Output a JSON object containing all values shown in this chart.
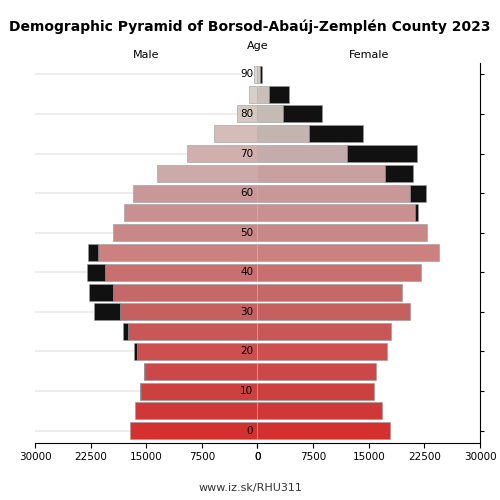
{
  "title": "Demographic Pyramid of Borsod-Abaúj-Zemplén County 2023",
  "footer": "www.iz.sk/RHU311",
  "label_male": "Male",
  "label_female": "Female",
  "label_age": "Age",
  "age_groups": [
    {
      "age": 90,
      "m_main": 450,
      "m_black": 0,
      "f_main": 280,
      "f_black": 330
    },
    {
      "age": 85,
      "m_main": 1200,
      "m_black": 0,
      "f_main": 1500,
      "f_black": 2700
    },
    {
      "age": 80,
      "m_main": 2700,
      "m_black": 0,
      "f_main": 3500,
      "f_black": 5200
    },
    {
      "age": 75,
      "m_main": 5800,
      "m_black": 0,
      "f_main": 7000,
      "f_black": 7200
    },
    {
      "age": 70,
      "m_main": 9500,
      "m_black": 0,
      "f_main": 12000,
      "f_black": 9500
    },
    {
      "age": 65,
      "m_main": 13500,
      "m_black": 0,
      "f_main": 17200,
      "f_black": 3800
    },
    {
      "age": 60,
      "m_main": 16800,
      "m_black": 0,
      "f_main": 20500,
      "f_black": 2200
    },
    {
      "age": 55,
      "m_main": 18000,
      "m_black": 0,
      "f_main": 21200,
      "f_black": 500
    },
    {
      "age": 50,
      "m_main": 19500,
      "m_black": 0,
      "f_main": 22800,
      "f_black": 0
    },
    {
      "age": 45,
      "m_main": 21500,
      "m_black": 1400,
      "f_main": 24500,
      "f_black": 0
    },
    {
      "age": 40,
      "m_main": 20500,
      "m_black": 2500,
      "f_main": 22000,
      "f_black": 0
    },
    {
      "age": 35,
      "m_main": 19500,
      "m_black": 3200,
      "f_main": 19500,
      "f_black": 0
    },
    {
      "age": 30,
      "m_main": 18500,
      "m_black": 3600,
      "f_main": 20500,
      "f_black": 0
    },
    {
      "age": 25,
      "m_main": 17500,
      "m_black": 700,
      "f_main": 18000,
      "f_black": 0
    },
    {
      "age": 20,
      "m_main": 16300,
      "m_black": 300,
      "f_main": 17500,
      "f_black": 0
    },
    {
      "age": 15,
      "m_main": 15200,
      "m_black": 150,
      "f_main": 16000,
      "f_black": 0
    },
    {
      "age": 10,
      "m_main": 15700,
      "m_black": 150,
      "f_main": 15700,
      "f_black": 0
    },
    {
      "age": 5,
      "m_main": 16500,
      "m_black": 0,
      "f_main": 16800,
      "f_black": 0
    },
    {
      "age": 0,
      "m_main": 17200,
      "m_black": 0,
      "f_main": 17800,
      "f_black": 0
    }
  ],
  "age_ticks": [
    0,
    10,
    20,
    30,
    40,
    50,
    60,
    70,
    80,
    90
  ],
  "x_ticks": [
    0,
    7500,
    15000,
    22500,
    30000
  ],
  "xlim": 30000,
  "bar_height": 4.3,
  "colors": {
    "m_90": "#ddd8d0",
    "m_85": "#d8cfc8",
    "m_80": "#d8cfc8",
    "m_75": "#d4c0bc",
    "m_70": "#d4b8b4",
    "m_65": "#ccaaaa",
    "m_60": "#cc9898",
    "m_55": "#cc9898",
    "m_50": "#cc9090",
    "m_45": "#cc8888",
    "m_40": "#c87070",
    "m_35": "#c86868",
    "m_30": "#c86060",
    "m_25": "#d05050",
    "m_20": "#d04848",
    "m_15": "#d04040",
    "m_10": "#d44040",
    "m_5": "#d83838",
    "m_0": "#dc3030",
    "f_90": "#d0c8c0",
    "f_85": "#ccc4bc",
    "f_80": "#ccc0b8",
    "f_75": "#ccb8b4",
    "f_70": "#ccb0ac",
    "f_65": "#ccaaaa",
    "f_60": "#cc9898",
    "f_55": "#cc9898",
    "f_50": "#cc9090",
    "f_45": "#cc8888",
    "f_40": "#c87070",
    "f_35": "#c86868",
    "f_30": "#c86060",
    "f_25": "#d05050",
    "f_20": "#d04848",
    "f_15": "#d04040",
    "f_10": "#d44040",
    "f_5": "#d83838",
    "f_0": "#dc3030",
    "black": "#111111",
    "edge": "#999999"
  },
  "title_fontsize": 10,
  "label_fontsize": 8,
  "tick_fontsize": 7.5,
  "footer_fontsize": 8
}
